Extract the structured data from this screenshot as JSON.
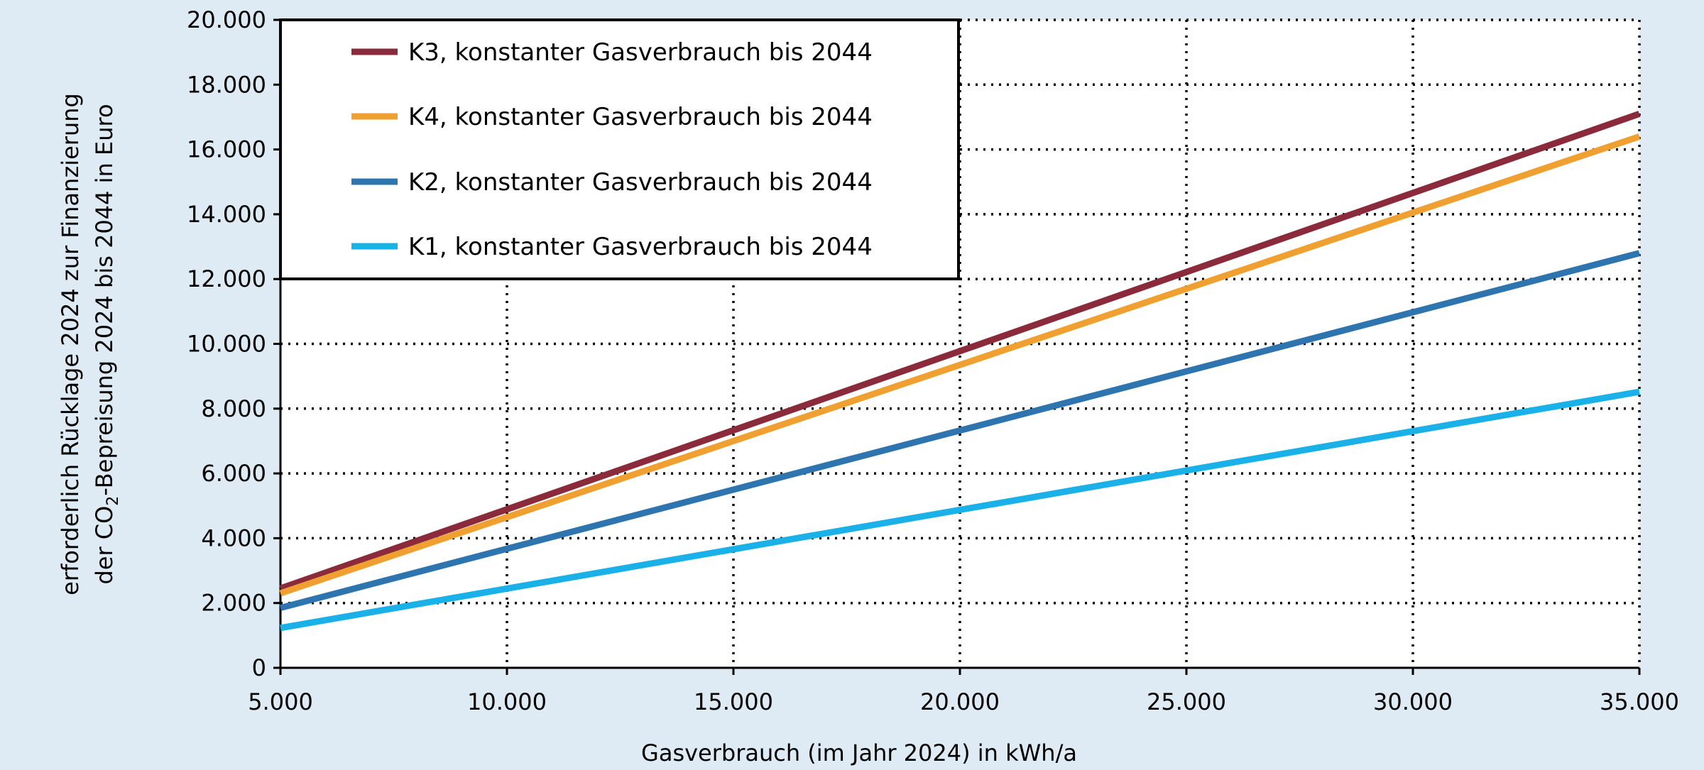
{
  "chart_data": {
    "type": "line",
    "title": "",
    "xlabel": "Gasverbrauch (im Jahr 2024) in kWh/a",
    "ylabel_line1": "erforderlich Rücklage 2024 zur Finanzierung",
    "ylabel_line2_prefix": "der CO",
    "ylabel_line2_sub": "2",
    "ylabel_line2_suffix": "-Bepreisung 2024 bis 2044 in Euro",
    "xlim": [
      5000,
      35000
    ],
    "ylim": [
      0,
      20000
    ],
    "x_ticks": [
      5000,
      10000,
      15000,
      20000,
      25000,
      30000,
      35000
    ],
    "x_tick_labels": [
      "5.000",
      "10.000",
      "15.000",
      "20.000",
      "25.000",
      "30.000",
      "35.000"
    ],
    "y_ticks": [
      0,
      2000,
      4000,
      6000,
      8000,
      10000,
      12000,
      14000,
      16000,
      18000,
      20000
    ],
    "y_tick_labels": [
      "0",
      "2.000",
      "4.000",
      "6.000",
      "8.000",
      "10.000",
      "12.000",
      "14.000",
      "16.000",
      "18.000",
      "20.000"
    ],
    "grid": true,
    "legend_position": "top-left",
    "x": [
      5000,
      35000
    ],
    "series": [
      {
        "name": "K3, konstanter Gasverbrauch bis 2044",
        "color": "#8b2a3a",
        "values": [
          2450,
          17100
        ]
      },
      {
        "name": "K4, konstanter Gasverbrauch bis 2044",
        "color": "#f0a030",
        "values": [
          2300,
          16400
        ]
      },
      {
        "name": "K2, konstanter Gasverbrauch bis 2044",
        "color": "#2e75b0",
        "values": [
          1850,
          12800
        ]
      },
      {
        "name": "K1, konstanter Gasverbrauch bis 2044",
        "color": "#1ab0e8",
        "values": [
          1230,
          8520
        ]
      }
    ]
  }
}
